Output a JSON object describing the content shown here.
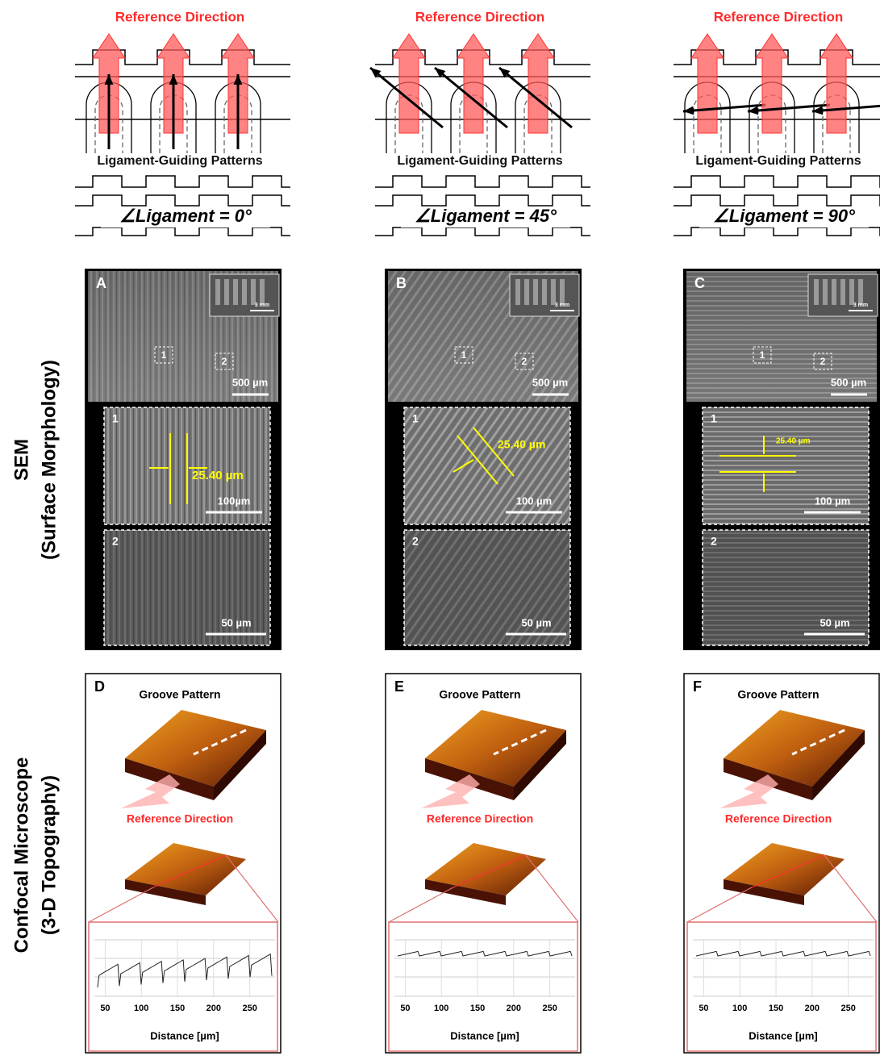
{
  "row_labels": {
    "sem": [
      "SEM",
      "(Surface Morphology)"
    ],
    "confocal": [
      "Confocal Microscope",
      "(3-D Topography)"
    ]
  },
  "columns": [
    {
      "reference_direction": "Reference Direction",
      "pattern_label": "Ligament-Guiding Patterns",
      "angle_label": "∠Ligament = 0°",
      "sem": {
        "letter": "A",
        "inset_scale": "3 mm",
        "region_labels": [
          "1",
          "2"
        ],
        "scale": "500 µm",
        "zoom1": {
          "label": "1",
          "spacing": "25.40 µm",
          "scale": "100µm"
        },
        "zoom2": {
          "label": "2",
          "scale": "50 µm"
        }
      },
      "confocal": {
        "letter": "D",
        "title": "Groove Pattern",
        "reference_direction": "Reference Direction",
        "profile": {
          "xlim": [
            35,
            285
          ],
          "xticks": [
            50,
            100,
            150,
            200,
            250
          ],
          "xlabel": "Distance [µm]"
        }
      }
    },
    {
      "reference_direction": "Reference Direction",
      "pattern_label": "Ligament-Guiding Patterns",
      "angle_label": "∠Ligament = 45°",
      "sem": {
        "letter": "B",
        "inset_scale": "3 mm",
        "region_labels": [
          "1",
          "2"
        ],
        "scale": "500 µm",
        "zoom1": {
          "label": "1",
          "spacing": "25.40 µm",
          "scale": "100 µm"
        },
        "zoom2": {
          "label": "2",
          "scale": "50 µm"
        }
      },
      "confocal": {
        "letter": "E",
        "title": "Groove Pattern",
        "reference_direction": "Reference Direction",
        "profile": {
          "xlim": [
            35,
            285
          ],
          "xticks": [
            50,
            100,
            150,
            200,
            250
          ],
          "xlabel": "Distance [µm]"
        }
      }
    },
    {
      "reference_direction": "Reference Direction",
      "pattern_label": "Ligament-Guiding Patterns",
      "angle_label": "∠Ligament = 90°",
      "sem": {
        "letter": "C",
        "inset_scale": "3 mm",
        "region_labels": [
          "1",
          "2"
        ],
        "scale": "500 µm",
        "zoom1": {
          "label": "1",
          "spacing": "25.40 µm",
          "scale": "100 µm"
        },
        "zoom2": {
          "label": "2",
          "scale": "50 µm"
        }
      },
      "confocal": {
        "letter": "F",
        "title": "Groove Pattern",
        "reference_direction": "Reference Direction",
        "profile": {
          "xlim": [
            35,
            285
          ],
          "xticks": [
            50,
            100,
            150,
            200,
            250
          ],
          "xlabel": "Distance [µm]"
        }
      }
    }
  ]
}
